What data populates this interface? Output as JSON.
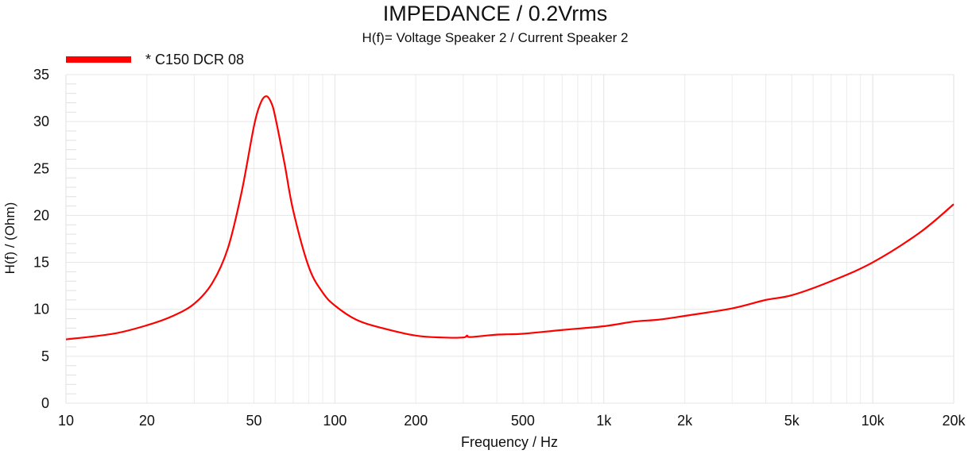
{
  "chart_data": {
    "type": "line",
    "title": "IMPEDANCE / 0.2Vrms",
    "subtitle": "H(f)= Voltage Speaker 2 / Current Speaker 2",
    "xlabel": "Frequency / Hz",
    "ylabel": "H(f) / (Ohm)",
    "xscale": "log",
    "xlim": [
      10,
      20000
    ],
    "ylim": [
      0,
      35
    ],
    "grid": true,
    "legend_position": "top-left",
    "x_ticks": [
      {
        "v": 10,
        "label": "10"
      },
      {
        "v": 20,
        "label": "20"
      },
      {
        "v": 50,
        "label": "50"
      },
      {
        "v": 100,
        "label": "100"
      },
      {
        "v": 200,
        "label": "200"
      },
      {
        "v": 500,
        "label": "500"
      },
      {
        "v": 1000,
        "label": "1k"
      },
      {
        "v": 2000,
        "label": "2k"
      },
      {
        "v": 5000,
        "label": "5k"
      },
      {
        "v": 10000,
        "label": "10k"
      },
      {
        "v": 20000,
        "label": "20k"
      }
    ],
    "y_ticks": [
      {
        "v": 0,
        "label": "0"
      },
      {
        "v": 5,
        "label": "5"
      },
      {
        "v": 10,
        "label": "10"
      },
      {
        "v": 15,
        "label": "15"
      },
      {
        "v": 20,
        "label": "20"
      },
      {
        "v": 25,
        "label": "25"
      },
      {
        "v": 30,
        "label": "30"
      },
      {
        "v": 35,
        "label": "35"
      }
    ],
    "series": [
      {
        "name": "* C150 DCR 08",
        "color": "#ff0000",
        "x": [
          10,
          15,
          20,
          25,
          30,
          35,
          40,
          45,
          50,
          53,
          55.6,
          58,
          60,
          65,
          70,
          80,
          90,
          100,
          120,
          150,
          200,
          250,
          300,
          310,
          320,
          400,
          500,
          700,
          1000,
          1300,
          1600,
          2000,
          3000,
          4000,
          5000,
          7000,
          10000,
          15000,
          20000
        ],
        "y": [
          6.8,
          7.4,
          8.3,
          9.3,
          10.6,
          12.8,
          16.5,
          22.5,
          29.5,
          32.0,
          32.7,
          32.0,
          30.5,
          25.5,
          20.5,
          14.5,
          11.8,
          10.4,
          8.9,
          8.0,
          7.2,
          7.0,
          7.0,
          7.2,
          7.05,
          7.3,
          7.4,
          7.8,
          8.2,
          8.7,
          8.9,
          9.3,
          10.1,
          11.0,
          11.5,
          13.0,
          15.0,
          18.2,
          21.2
        ]
      }
    ]
  }
}
